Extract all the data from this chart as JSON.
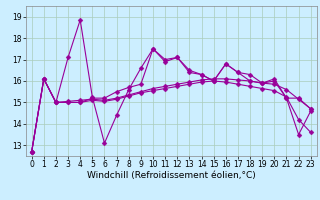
{
  "bg_color": "#cceeff",
  "grid_color": "#aaccbb",
  "line_color": "#990099",
  "marker": "D",
  "markersize": 2.5,
  "linewidth": 0.8,
  "xlabel": "Windchill (Refroidissement éolien,°C)",
  "xlabel_fontsize": 6.5,
  "tick_fontsize": 5.5,
  "ylim": [
    12.5,
    19.5
  ],
  "yticks": [
    13,
    14,
    15,
    16,
    17,
    18,
    19
  ],
  "xticks": [
    0,
    1,
    2,
    3,
    4,
    5,
    6,
    7,
    8,
    9,
    10,
    11,
    12,
    13,
    14,
    15,
    16,
    17,
    18,
    19,
    20,
    21,
    22,
    23
  ],
  "series": [
    [
      12.7,
      16.1,
      15.0,
      17.1,
      18.85,
      15.25,
      13.1,
      14.4,
      15.6,
      16.6,
      17.5,
      16.9,
      17.1,
      16.4,
      16.3,
      16.0,
      16.8,
      16.4,
      16.3,
      15.9,
      16.0,
      15.2,
      13.5,
      14.6
    ],
    [
      12.7,
      16.1,
      15.0,
      15.0,
      15.0,
      15.2,
      15.2,
      15.5,
      15.7,
      15.85,
      17.5,
      17.0,
      17.1,
      16.5,
      16.3,
      16.0,
      16.8,
      16.4,
      16.0,
      15.9,
      16.1,
      15.2,
      15.2,
      14.7
    ],
    [
      12.7,
      16.1,
      15.0,
      15.05,
      15.1,
      15.15,
      15.1,
      15.2,
      15.35,
      15.5,
      15.65,
      15.75,
      15.85,
      15.95,
      16.05,
      16.1,
      16.1,
      16.05,
      16.0,
      15.9,
      15.85,
      15.6,
      15.15,
      14.7
    ],
    [
      12.7,
      16.1,
      15.0,
      15.0,
      15.0,
      15.1,
      15.05,
      15.15,
      15.3,
      15.45,
      15.55,
      15.65,
      15.75,
      15.85,
      15.95,
      16.0,
      15.95,
      15.85,
      15.75,
      15.65,
      15.55,
      15.25,
      14.2,
      13.6
    ]
  ]
}
